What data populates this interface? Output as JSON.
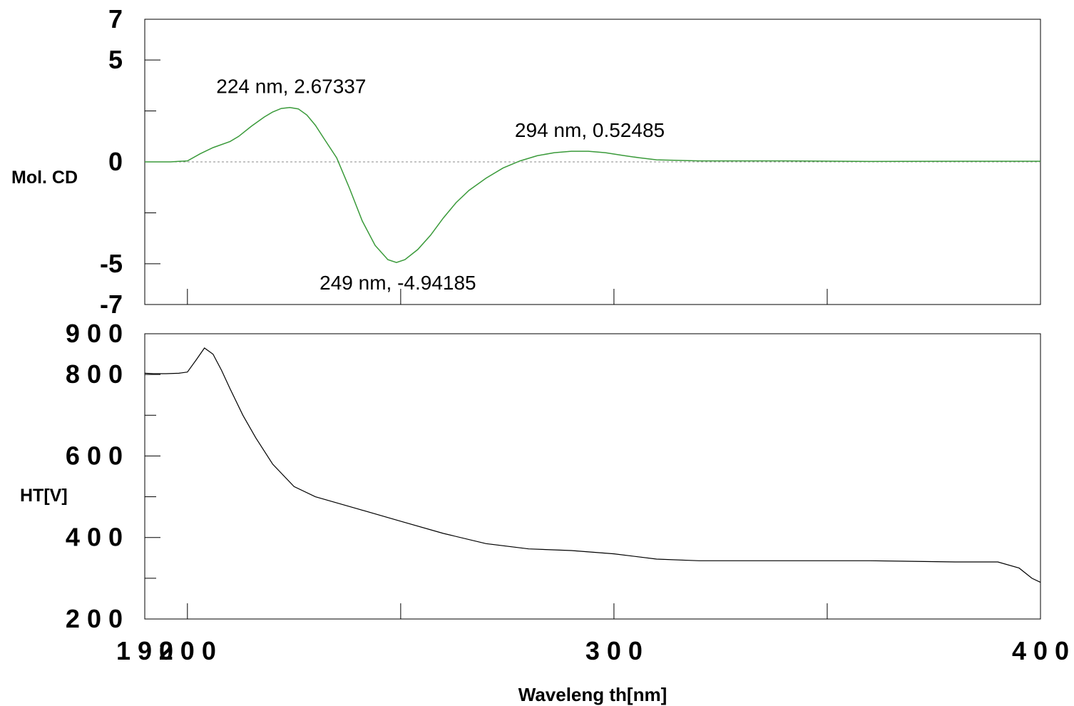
{
  "chart_data": [
    {
      "type": "line",
      "ylabel": "Mol. CD",
      "xlim": [
        190,
        400
      ],
      "ylim": [
        -7,
        7
      ],
      "ytick_labels": [
        {
          "value": 7,
          "label": "7"
        },
        {
          "value": 5,
          "label": "5"
        },
        {
          "value": 0,
          "label": "0"
        },
        {
          "value": -5,
          "label": "-5"
        },
        {
          "value": -7,
          "label": "-7"
        }
      ],
      "minor_yticks": [
        2.5,
        -2.5
      ],
      "zero_line": true,
      "line_color": "#3a9a3a",
      "series": [
        {
          "x": [
            190,
            196,
            200,
            203,
            206,
            210,
            212,
            215,
            218,
            220,
            222,
            224,
            226,
            228,
            230,
            232,
            235,
            238,
            241,
            244,
            247,
            249,
            251,
            254,
            257,
            260,
            263,
            266,
            270,
            274,
            278,
            282,
            286,
            290,
            294,
            298,
            302,
            306,
            310,
            320,
            340,
            360,
            380,
            400
          ],
          "y": [
            0,
            0,
            0.05,
            0.4,
            0.7,
            1.0,
            1.25,
            1.75,
            2.2,
            2.45,
            2.62,
            2.67,
            2.6,
            2.3,
            1.8,
            1.15,
            0.2,
            -1.3,
            -2.9,
            -4.1,
            -4.8,
            -4.94,
            -4.8,
            -4.3,
            -3.6,
            -2.75,
            -2.0,
            -1.4,
            -0.8,
            -0.3,
            0.05,
            0.3,
            0.45,
            0.52,
            0.52,
            0.45,
            0.32,
            0.2,
            0.1,
            0.05,
            0.05,
            0.02,
            0.03,
            0.03
          ]
        }
      ],
      "annotations": [
        {
          "x": 224,
          "y": 2.67337,
          "text": "224 nm, 2.67337",
          "position": "above"
        },
        {
          "x": 249,
          "y": -4.94185,
          "text": "249 nm, -4.94185",
          "position": "below"
        },
        {
          "x": 294,
          "y": 0.52485,
          "text": "294 nm, 0.52485",
          "position": "above"
        }
      ]
    },
    {
      "type": "line",
      "ylabel": "HT[V]",
      "xlabel": "Waveleng th[nm]",
      "xlim": [
        190,
        400
      ],
      "ylim": [
        200,
        900
      ],
      "ytick_labels": [
        {
          "value": 900,
          "label": "9 0 0"
        },
        {
          "value": 800,
          "label": "8 0 0"
        },
        {
          "value": 600,
          "label": "6 0 0"
        },
        {
          "value": 400,
          "label": "4 0 0"
        },
        {
          "value": 200,
          "label": "2 0 0"
        }
      ],
      "minor_yticks": [
        700,
        500,
        300
      ],
      "xtick_labels": [
        {
          "value": 190,
          "label": "1 9 0"
        },
        {
          "value": 200,
          "label": "2 0 0"
        },
        {
          "value": 300,
          "label": "3 0 0"
        },
        {
          "value": 400,
          "label": "4 0 0"
        }
      ],
      "minor_xticks": [
        250,
        350
      ],
      "line_color": "#000000",
      "series": [
        {
          "x": [
            190,
            192,
            195,
            198,
            200,
            202,
            204,
            206,
            208,
            210,
            213,
            216,
            220,
            225,
            230,
            240,
            250,
            260,
            270,
            280,
            290,
            300,
            310,
            320,
            340,
            360,
            380,
            390,
            395,
            398,
            400
          ],
          "y": [
            803,
            802,
            802,
            803,
            806,
            835,
            865,
            850,
            810,
            765,
            700,
            645,
            580,
            525,
            500,
            470,
            440,
            410,
            385,
            372,
            368,
            360,
            347,
            343,
            343,
            343,
            340,
            340,
            325,
            300,
            290
          ]
        }
      ]
    }
  ]
}
